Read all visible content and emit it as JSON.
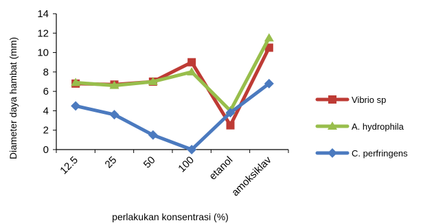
{
  "chart_data": {
    "type": "line",
    "title": "",
    "xlabel": "perlakukan konsentrasi (%)",
    "ylabel": "Diameter daya hambat (mm)",
    "categories": [
      "12.5",
      "25",
      "50",
      "100",
      "etanol",
      "amoksiklav"
    ],
    "ylim": [
      0,
      14
    ],
    "yticks": [
      0,
      2,
      4,
      6,
      8,
      10,
      12,
      14
    ],
    "grid": false,
    "legend_position": "right",
    "series": [
      {
        "name": "Vibrio sp",
        "values": [
          6.8,
          6.7,
          7.0,
          9.0,
          2.5,
          10.5
        ],
        "color": "#be3b35",
        "marker": "square"
      },
      {
        "name": "A. hydrophila",
        "values": [
          6.9,
          6.6,
          7.0,
          8.0,
          4.0,
          11.5
        ],
        "color": "#98be4c",
        "marker": "triangle"
      },
      {
        "name": "C. perfringens",
        "values": [
          4.5,
          3.6,
          1.5,
          0.0,
          3.8,
          6.8
        ],
        "color": "#4b7abf",
        "marker": "diamond"
      }
    ]
  }
}
